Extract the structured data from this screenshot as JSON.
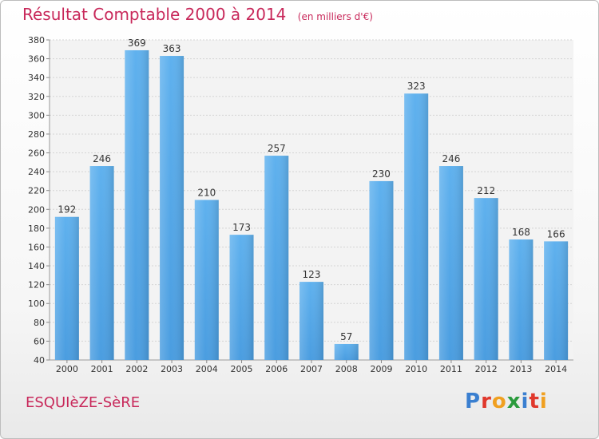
{
  "chart_data": {
    "type": "bar",
    "title": "Résultat Comptable 2000 à 2014",
    "subtitle": "(en milliers d'€)",
    "categories": [
      "2000",
      "2001",
      "2002",
      "2003",
      "2004",
      "2005",
      "2006",
      "2007",
      "2008",
      "2009",
      "2010",
      "2011",
      "2012",
      "2013",
      "2014"
    ],
    "values": [
      192,
      246,
      369,
      363,
      210,
      173,
      257,
      123,
      57,
      230,
      323,
      246,
      212,
      168,
      166
    ],
    "ylim": [
      40,
      380
    ],
    "yticks": [
      40,
      60,
      80,
      100,
      120,
      140,
      160,
      180,
      200,
      220,
      240,
      260,
      280,
      300,
      320,
      340,
      360,
      380
    ],
    "grid": true,
    "bar_color": "#4a9de0"
  },
  "commune": "ESQUIèZE-SèRE",
  "logo": {
    "letters": [
      "P",
      "r",
      "o",
      "x",
      "i",
      "t",
      "i"
    ],
    "colors": [
      "#3a7fd0",
      "#e0382c",
      "#f0a020",
      "#2a9b3c",
      "#3a7fd0",
      "#e0382c",
      "#f0a020"
    ]
  }
}
